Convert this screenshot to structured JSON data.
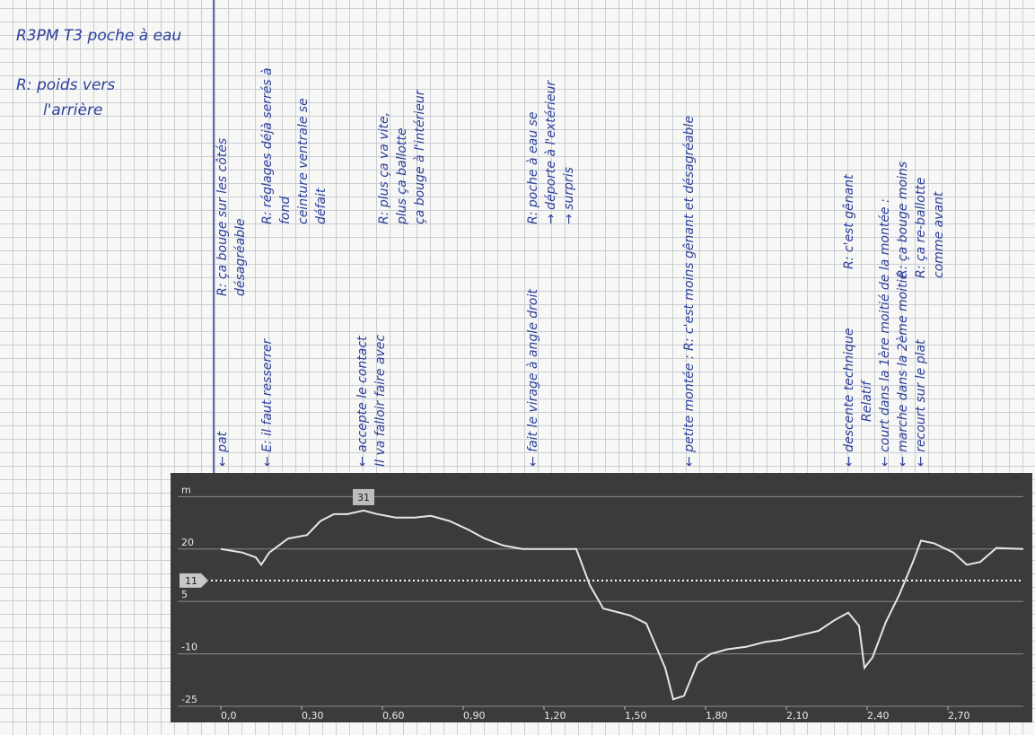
{
  "notes_header": [
    "R3PM T3 poche à eau",
    "R: poids vers",
    "l'arrière"
  ],
  "notes": [
    "← pat",
    "R: ça bouge sur les côtés",
    "désagréable",
    "← E: il faut resserrer",
    "R: réglages déjà serrés à",
    "fond",
    "ceinture ventrale se",
    "défait",
    "← accepte le contact",
    "Il va falloir faire avec",
    "R: plus ça va vite,",
    "plus ça ballotte",
    "ça bouge à l'intérieur",
    "← fait le virage à angle droit",
    "R: poche à eau se",
    "→ déporte à l'extérieur",
    "→ surpris",
    "← petite montée : R: c'est moins gênant et désagréable",
    "← descente technique",
    "R: c'est gênant",
    "Relatif",
    "← court dans la 1ère moitié de la montée :",
    "← marche dans la 2ème moitié",
    "R: ça bouge moins",
    "← recourt sur le plat",
    "R: ça re-ballotte",
    "comme avant"
  ],
  "chart_data": {
    "type": "line",
    "x": [
      0,
      0.08,
      0.13,
      0.15,
      0.18,
      0.25,
      0.32,
      0.37,
      0.42,
      0.47,
      0.53,
      0.58,
      0.65,
      0.72,
      0.78,
      0.85,
      0.92,
      0.98,
      1.05,
      1.12,
      1.32,
      1.37,
      1.42,
      1.47,
      1.52,
      1.58,
      1.65,
      1.68,
      1.72,
      1.77,
      1.82,
      1.88,
      1.95,
      2.02,
      2.08,
      2.15,
      2.22,
      2.28,
      2.33,
      2.37,
      2.39,
      2.42,
      2.47,
      2.52,
      2.57,
      2.6,
      2.65,
      2.72,
      2.77,
      2.82,
      2.88,
      2.98
    ],
    "values": [
      20,
      19,
      17.6,
      15.5,
      19,
      23,
      24,
      28,
      30,
      30,
      31,
      30,
      29,
      29,
      29.5,
      28,
      25.5,
      23,
      21,
      20,
      20,
      9.7,
      3,
      2,
      1,
      -1.3,
      -14,
      -23,
      -22,
      -12.6,
      -10,
      -8.7,
      -8,
      -6.6,
      -6,
      -4.7,
      -3.4,
      -0.3,
      1.8,
      -2,
      -14,
      -11,
      -0.8,
      7,
      16.3,
      22.4,
      21.6,
      19,
      15.5,
      16.3,
      20.3,
      20
    ],
    "color": "#e6e6e6",
    "xlim": [
      -0.01,
      2.98
    ],
    "ylim": [
      -25,
      41
    ],
    "xticks": [
      {
        "value": 0,
        "label": "0,0"
      },
      {
        "value": 0.3,
        "label": "0,30"
      },
      {
        "value": 0.6,
        "label": "0,60"
      },
      {
        "value": 0.9,
        "label": "0,90"
      },
      {
        "value": 1.2,
        "label": "1,20"
      },
      {
        "value": 1.5,
        "label": "1,50"
      },
      {
        "value": 1.8,
        "label": "1,80"
      },
      {
        "value": 2.1,
        "label": "2,10"
      },
      {
        "value": 2.4,
        "label": "2,40"
      },
      {
        "value": 2.7,
        "label": "2,70"
      }
    ],
    "yticks": [
      -25,
      -10,
      5,
      20,
      {
        "value": 35,
        "label": "m"
      }
    ],
    "grid": true,
    "reference_line": 11,
    "peak": {
      "x": 0.53,
      "value": 31
    }
  }
}
